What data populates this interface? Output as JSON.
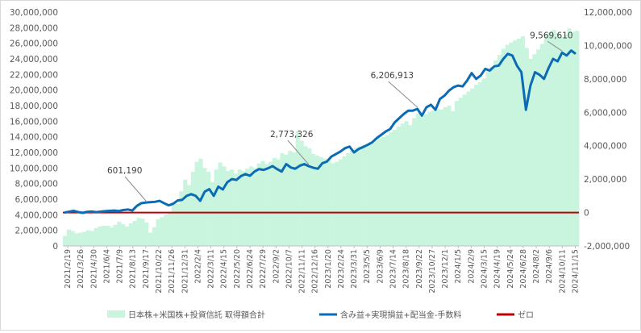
{
  "chart_data": {
    "type": "bar+line",
    "left_axis": {
      "min": 0,
      "max": 30000000,
      "step": 2000000,
      "ticks": [
        "0",
        "2,000,000",
        "4,000,000",
        "6,000,000",
        "8,000,000",
        "10,000,000",
        "12,000,000",
        "14,000,000",
        "16,000,000",
        "18,000,000",
        "20,000,000",
        "22,000,000",
        "24,000,000",
        "26,000,000",
        "28,000,000",
        "30,000,000"
      ]
    },
    "right_axis": {
      "min": -2000000,
      "max": 12000000,
      "step": 2000000,
      "ticks": [
        "-2,000,000",
        "0",
        "2,000,000",
        "4,000,000",
        "6,000,000",
        "8,000,000",
        "10,000,000",
        "12,000,000"
      ]
    },
    "x_labels": [
      "2021/2/19",
      "2021/3/26",
      "2021/4/30",
      "2021/6/4",
      "2021/7/9",
      "2021/8/13",
      "2021/9/17",
      "2021/10/22",
      "2021/11/26",
      "2021/12/31",
      "2022/2/4",
      "2022/3/11",
      "2022/4/15",
      "2022/5/20",
      "2022/6/24",
      "2022/7/29",
      "2022/9/2",
      "2022/10/7",
      "2022/11/11",
      "2022/12/16",
      "2023/1/20",
      "2023/2/24",
      "2023/3/31",
      "2023/5/5",
      "2023/6/9",
      "2023/7/14",
      "2023/8/18",
      "2023/9/22",
      "2023/10/27",
      "2023/12/1",
      "2024/1/5",
      "2024/2/9",
      "2024/3/15",
      "2024/4/19",
      "2024/5/24",
      "2024/6/28",
      "2024/8/2",
      "2024/9/6",
      "2024/10/11",
      "2024/11/15"
    ],
    "series": [
      {
        "name": "日本株+米国株+投資信託 取得額合計",
        "axis": "left",
        "kind": "bar",
        "color": "#c9f5df",
        "values": [
          1300000,
          2100000,
          1900000,
          1600000,
          1700000,
          1800000,
          2000000,
          1900000,
          2300000,
          2500000,
          2600000,
          2600000,
          2400000,
          2700000,
          3100000,
          2800000,
          2500000,
          2900000,
          3200000,
          3600000,
          3500000,
          3000000,
          1700000,
          2400000,
          3400000,
          3700000,
          4000000,
          4200000,
          5600000,
          5400000,
          7000000,
          8500000,
          7800000,
          9500000,
          10800000,
          11200000,
          10000000,
          9500000,
          8200000,
          9800000,
          10700000,
          10200000,
          9600000,
          9800000,
          9300000,
          9800000,
          9600000,
          9900000,
          10200000,
          10000000,
          10600000,
          10900000,
          10500000,
          10800000,
          11300000,
          11100000,
          11900000,
          11700000,
          12200000,
          12000000,
          14700000,
          13500000,
          12800000,
          12500000,
          11800000,
          11600000,
          11400000,
          11200000,
          11000000,
          10600000,
          10800000,
          11100000,
          11500000,
          11900000,
          12200000,
          12600000,
          12800000,
          12900000,
          13100000,
          13300000,
          13500000,
          13800000,
          14000000,
          14200000,
          14600000,
          14900000,
          15300000,
          15700000,
          16000000,
          15500000,
          16400000,
          17000000,
          16600000,
          16900000,
          17200000,
          17400000,
          17600000,
          17500000,
          17800000,
          18000000,
          17300000,
          18600000,
          19000000,
          19400000,
          19800000,
          20200000,
          20700000,
          21000000,
          21500000,
          22400000,
          23000000,
          23800000,
          24500000,
          25300000,
          25800000,
          26100000,
          26400000,
          26600000,
          26900000,
          25400000,
          24000000,
          24600000,
          25200000,
          25900000,
          27000000,
          27400000,
          27700000,
          27300000,
          26800000,
          27100000,
          27900000,
          27500000,
          27600000
        ]
      },
      {
        "name": "含み益+実現損益+配当金-手数料",
        "axis": "right",
        "kind": "line",
        "color": "#0b6bb5",
        "values": [
          0,
          50000,
          100000,
          30000,
          -20000,
          40000,
          60000,
          20000,
          50000,
          80000,
          100000,
          120000,
          90000,
          150000,
          180000,
          120000,
          400000,
          560000,
          601190,
          620000,
          640000,
          700000,
          560000,
          430000,
          520000,
          720000,
          760000,
          1000000,
          1100000,
          1000000,
          700000,
          1250000,
          1400000,
          1000000,
          1550000,
          1380000,
          1820000,
          2000000,
          1950000,
          2180000,
          2300000,
          2200000,
          2450000,
          2600000,
          2550000,
          2650000,
          2780000,
          2600000,
          2450000,
          2900000,
          2700000,
          2620000,
          2800000,
          2900000,
          2773326,
          2680000,
          2620000,
          2950000,
          3050000,
          3350000,
          3500000,
          3650000,
          3850000,
          3950000,
          3600000,
          3800000,
          3920000,
          4050000,
          4200000,
          4450000,
          4650000,
          4850000,
          5000000,
          5400000,
          5650000,
          5900000,
          6100000,
          6100000,
          6206913,
          5800000,
          6300000,
          6450000,
          6150000,
          6800000,
          7000000,
          7300000,
          7500000,
          7600000,
          7550000,
          7900000,
          8350000,
          8000000,
          8200000,
          8600000,
          8500000,
          8750000,
          8800000,
          9200000,
          9500000,
          9400000,
          8800000,
          8400000,
          6150000,
          7600000,
          8400000,
          8250000,
          8000000,
          8650000,
          9200000,
          9050000,
          9569610,
          9400000,
          9700000,
          9500000
        ]
      },
      {
        "name": "ゼロ",
        "axis": "right",
        "kind": "line",
        "color": "#c00000",
        "values": [
          0,
          0
        ]
      }
    ],
    "annotations": [
      {
        "text": "601,190",
        "index": 18
      },
      {
        "text": "2,773,326",
        "index": 54
      },
      {
        "text": "6,206,913",
        "index": 78
      },
      {
        "text": "9,569,610",
        "index": 110
      }
    ],
    "legend_position": "bottom",
    "grid": false
  }
}
